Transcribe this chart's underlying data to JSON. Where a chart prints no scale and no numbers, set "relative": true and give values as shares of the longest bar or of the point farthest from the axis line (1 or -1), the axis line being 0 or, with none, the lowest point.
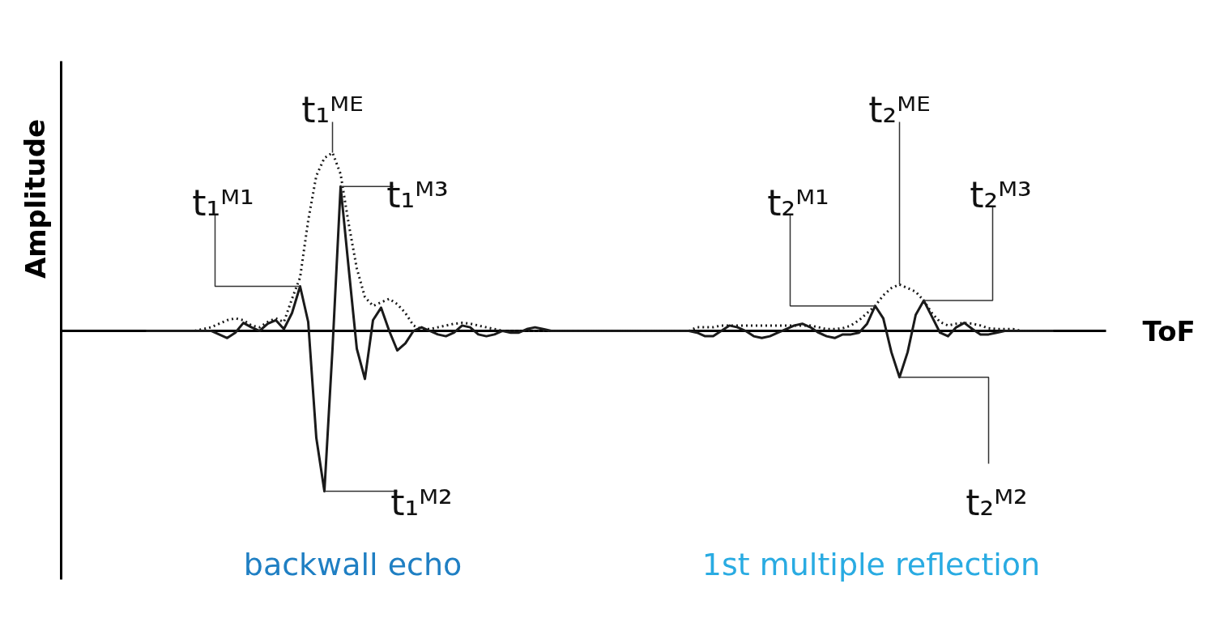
{
  "chart_data": {
    "type": "line",
    "relative": true,
    "xlabel": "ToF",
    "ylabel": "Amplitude",
    "categories": [
      null,
      null,
      null,
      null,
      null,
      null,
      null,
      null,
      null,
      null,
      null,
      null,
      null,
      null,
      null,
      null,
      null,
      null,
      null,
      null,
      null,
      null,
      null,
      null,
      null,
      null,
      null,
      null,
      null,
      null,
      null,
      null,
      null,
      null,
      null,
      null,
      null,
      null,
      null,
      null,
      null,
      null,
      null,
      null,
      null,
      null,
      null,
      null,
      null,
      null,
      null,
      null,
      null,
      null,
      null,
      null,
      null,
      null,
      null,
      null,
      null,
      null,
      null,
      null,
      null,
      null,
      null,
      null,
      null,
      null,
      null,
      null,
      null,
      null,
      null,
      null,
      null,
      null,
      null,
      null,
      null,
      null,
      null,
      null,
      null,
      null,
      null,
      null,
      null,
      null,
      null,
      null,
      null,
      null,
      null,
      null,
      null,
      null,
      null,
      null,
      null,
      null,
      null,
      null,
      null,
      null,
      null,
      null,
      null,
      null,
      null,
      null,
      null
    ],
    "series": [
      {
        "color": "#1a1a1a",
        "line_style": "solid",
        "values": [
          0,
          0,
          0,
          0,
          0,
          0,
          0,
          0,
          0,
          -0.02,
          -0.04,
          -0.01,
          0.045,
          0.02,
          0,
          0.04,
          0.06,
          0.01,
          0.1,
          0.25,
          0.05,
          -0.6,
          -0.9,
          -0.1,
          0.81,
          0.35,
          -0.1,
          -0.27,
          0.06,
          0.13,
          0,
          -0.11,
          -0.07,
          0,
          0.02,
          0,
          -0.02,
          -0.03,
          -0.01,
          0.03,
          0.02,
          -0.02,
          -0.03,
          -0.02,
          0,
          -0.01,
          -0.01,
          0.01,
          0.02,
          0.01,
          0,
          0,
          0,
          0,
          0,
          0,
          0,
          0,
          0,
          0,
          0,
          0,
          0,
          0,
          0,
          0,
          0,
          0,
          -0.01,
          -0.03,
          -0.03,
          0,
          0.03,
          0.02,
          0,
          -0.03,
          -0.04,
          -0.03,
          -0.01,
          0.01,
          0.03,
          0.04,
          0.02,
          -0.01,
          -0.03,
          -0.04,
          -0.02,
          -0.02,
          -0.01,
          0.04,
          0.14,
          0.07,
          -0.12,
          -0.26,
          -0.12,
          0.09,
          0.17,
          0.08,
          -0.01,
          -0.03,
          0.02,
          0.045,
          0.01,
          -0.02,
          -0.02,
          -0.01,
          0,
          0,
          0,
          0,
          0,
          0,
          0
        ]
      },
      {
        "color": "#1a1a1a",
        "line_style": "dotted",
        "values": [
          0,
          0,
          0,
          0,
          0,
          0,
          0,
          0.01,
          0.02,
          0.04,
          0.06,
          0.07,
          0.06,
          0.03,
          0.02,
          0.05,
          0.07,
          0.05,
          0.18,
          0.3,
          0.62,
          0.87,
          0.97,
          1,
          0.88,
          0.6,
          0.35,
          0.19,
          0.14,
          0.16,
          0.18,
          0.15,
          0.1,
          0.03,
          0.01,
          0.01,
          0.02,
          0.03,
          0.04,
          0.045,
          0.04,
          0.03,
          0.02,
          0.01,
          0,
          0,
          0,
          0,
          0,
          0,
          0,
          0,
          0,
          0,
          0,
          0,
          0,
          0,
          0,
          0,
          0,
          0,
          0,
          0,
          0,
          0,
          0,
          0,
          0.02,
          0.02,
          0.02,
          0.03,
          0.03,
          0.03,
          0.03,
          0.03,
          0.03,
          0.03,
          0.03,
          0.03,
          0.03,
          0.03,
          0.03,
          0.02,
          0.01,
          0.01,
          0.015,
          0.03,
          0.06,
          0.1,
          0.14,
          0.2,
          0.24,
          0.26,
          0.24,
          0.22,
          0.17,
          0.1,
          0.05,
          0.03,
          0.04,
          0.045,
          0.04,
          0.03,
          0.015,
          0.01,
          0.01,
          0.01,
          0,
          0,
          0,
          0,
          0
        ]
      }
    ],
    "annotations": [
      "t₁ᴹ¹",
      "t₁ᴹᴱ",
      "t₁ᴹ³",
      "t₁ᴹ²",
      "t₂ᴹ¹",
      "t₂ᴹᴱ",
      "t₂ᴹ³",
      "t₂ᴹ²",
      "backwall echo",
      "1st multiple reflection"
    ]
  }
}
